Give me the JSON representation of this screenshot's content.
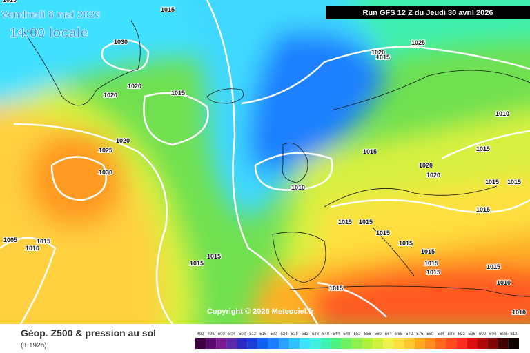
{
  "header": {
    "date": "Vendredi 8 mai 2026",
    "time": "14:00 locale",
    "run": "Run GFS 12 Z du Jeudi 30 avril 2026"
  },
  "copyright": "Copyright © 2026 Meteociel.fr",
  "footer": {
    "title": "Géop. Z500 & pression au sol",
    "subtitle": "(+ 192h)"
  },
  "legend": {
    "labels": [
      492,
      496,
      500,
      504,
      508,
      512,
      516,
      520,
      524,
      528,
      532,
      536,
      540,
      544,
      548,
      552,
      556,
      560,
      564,
      568,
      572,
      576,
      580,
      584,
      588,
      592,
      596,
      600,
      604,
      608,
      612
    ],
    "colors": [
      "#3a0040",
      "#5a0a6a",
      "#7a1a90",
      "#5a2aa8",
      "#2a2ac0",
      "#1a40d8",
      "#1060f0",
      "#1a80ff",
      "#2aa0ff",
      "#30c0ff",
      "#40e0ff",
      "#40f0e0",
      "#40f0b0",
      "#50f080",
      "#70f060",
      "#90f050",
      "#b0f040",
      "#d0f040",
      "#f0f050",
      "#ffe040",
      "#ffc830",
      "#ffa820",
      "#ff8a20",
      "#ff6a20",
      "#ff4a20",
      "#ff2a20",
      "#e01010",
      "#b00808",
      "#800404",
      "#400000",
      "#100000"
    ]
  },
  "isobar_labels": [
    1015,
    1015,
    1030,
    1020,
    1020,
    1015,
    1020,
    1025,
    1030,
    1025,
    1020,
    1015,
    1010,
    1015,
    1015,
    1020,
    1020,
    1015,
    1015,
    1010,
    1015,
    1015,
    1015,
    1015,
    1005,
    1015,
    1010,
    1015,
    1015,
    1015,
    1015,
    1015,
    1015,
    1015,
    1010,
    1015,
    1010
  ]
}
